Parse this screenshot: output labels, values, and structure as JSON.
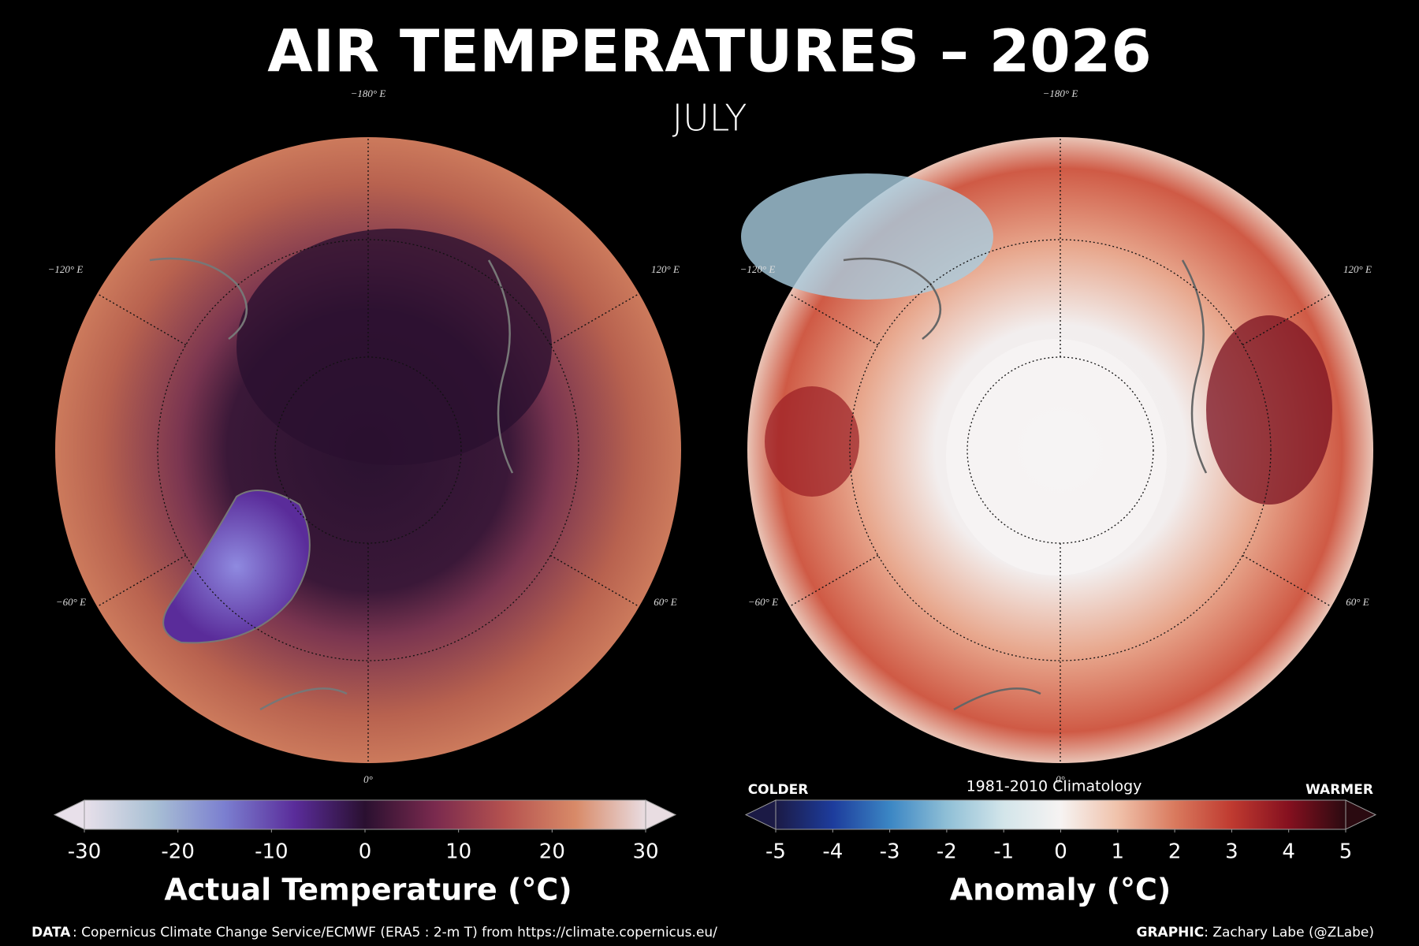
{
  "header": {
    "title": "AIR TEMPERATURES – 2026",
    "subtitle": "JULY"
  },
  "maps": [
    {
      "name": "actual",
      "longitude_labels": {
        "top": "−180° E",
        "upper_left": "−120° E",
        "lower_left": "−60° E",
        "bottom": "0°",
        "upper_right": "120° E",
        "lower_right": "60° E"
      }
    },
    {
      "name": "anomaly",
      "longitude_labels": {
        "top": "−180° E",
        "upper_left": "−120° E",
        "lower_left": "−60° E",
        "bottom": "0°",
        "upper_right": "120° E",
        "lower_right": "60° E"
      }
    }
  ],
  "colorbars": [
    {
      "label": "Actual Temperature (°C)",
      "lim": [
        -30,
        30
      ],
      "ticks": [
        -30,
        -20,
        -10,
        0,
        10,
        20,
        30
      ],
      "colors": [
        "#e8e0ea",
        "#a9c0d4",
        "#7b7fd0",
        "#5a2c9a",
        "#2a1030",
        "#7a2a4e",
        "#b5524f",
        "#d88a68",
        "#e9dde2"
      ]
    },
    {
      "label": "Anomaly (°C)",
      "lim": [
        -5,
        5
      ],
      "ticks": [
        -5,
        -4,
        -3,
        -2,
        -1,
        0,
        1,
        2,
        3,
        4,
        5
      ],
      "colors": [
        "#1b1a45",
        "#1d3c9c",
        "#3b86c4",
        "#8fbfd6",
        "#d3e5ea",
        "#f6f3f2",
        "#f0c2ab",
        "#d97a5e",
        "#bf3a30",
        "#85101f",
        "#2a0a10"
      ],
      "note": "1981-2010 Climatology",
      "low_label": "COLDER",
      "high_label": "WARMER"
    }
  ],
  "footer": {
    "data_label": "DATA",
    "data_text": ": Copernicus Climate Change Service/ECMWF (ERA5 : 2-m T) from https://climate.copernicus.eu/",
    "graphic_label": "GRAPHIC",
    "graphic_text": ": Zachary Labe (@ZLabe)"
  }
}
